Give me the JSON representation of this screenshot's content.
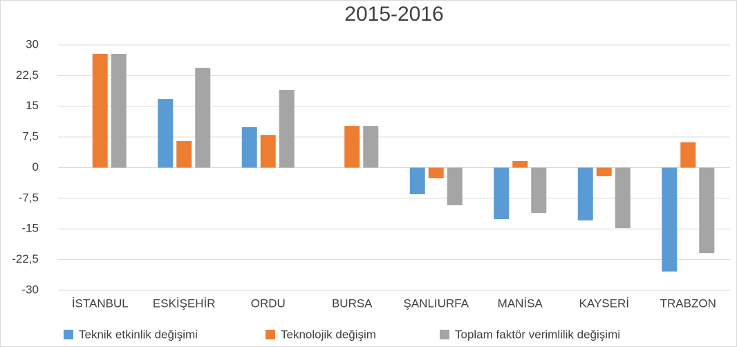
{
  "chart_data": {
    "type": "bar",
    "title": "2015-2016",
    "categories": [
      "İSTANBUL",
      "ESKİŞEHİR",
      "ORDU",
      "BURSA",
      "ŞANLIURFA",
      "MANİSA",
      "KAYSERİ",
      "TRABZON"
    ],
    "series": [
      {
        "name": "Teknik etkinlik değişimi",
        "color": "#5b9bd5",
        "values": [
          0,
          16.8,
          9.9,
          0,
          -6.5,
          -12.6,
          -12.9,
          -25.4
        ]
      },
      {
        "name": "Teknolojik değişim",
        "color": "#ed7d31",
        "values": [
          27.8,
          6.5,
          8.0,
          10.2,
          -2.6,
          1.6,
          -2.1,
          6.2
        ]
      },
      {
        "name": "Toplam faktör verimlilik değişimi",
        "color": "#a5a5a5",
        "values": [
          27.8,
          24.4,
          19.0,
          10.2,
          -9.2,
          -11.1,
          -14.8,
          -20.9
        ]
      }
    ],
    "ylim": [
      -30,
      30
    ],
    "yticks": [
      30,
      {
        "value": 22.5,
        "label": "22,5"
      },
      15,
      {
        "value": 7.5,
        "label": "7,5"
      },
      0,
      {
        "value": -7.5,
        "label": "-7,5"
      },
      -15,
      {
        "value": -22.5,
        "label": "-22,5"
      },
      -30
    ],
    "grid": true,
    "legend": "bottom"
  }
}
